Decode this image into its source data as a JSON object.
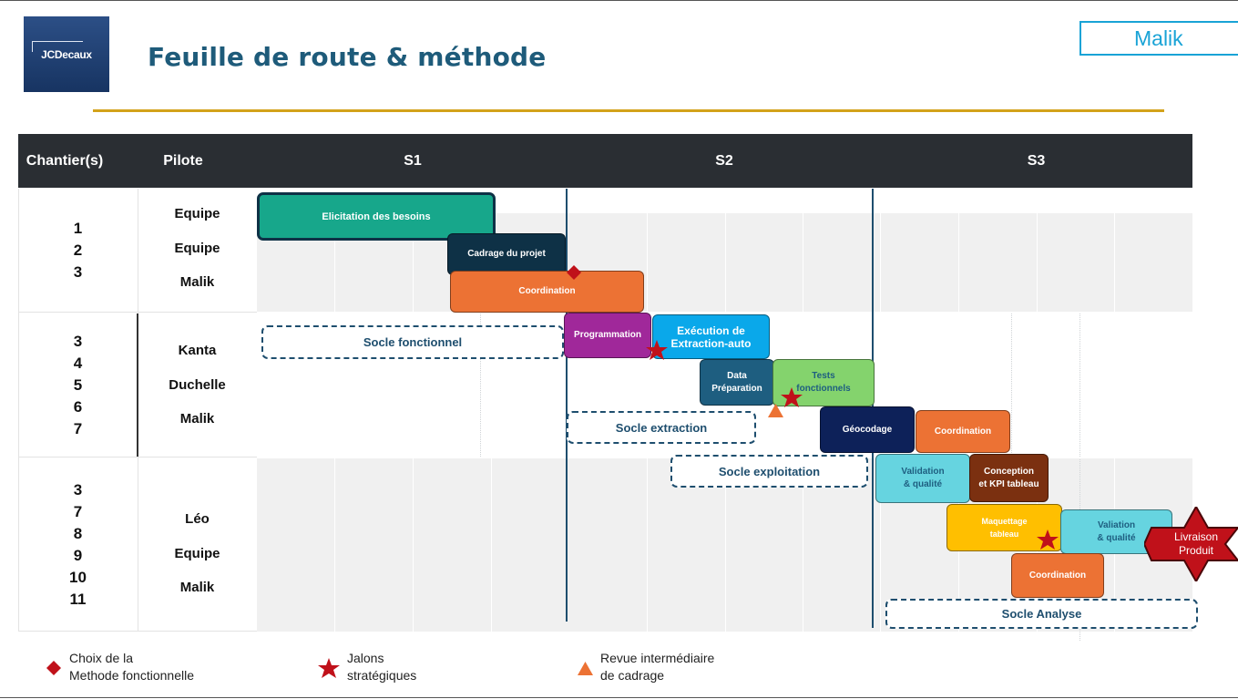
{
  "title": "Feuille de route & méthode",
  "logo_text": "JCDecaux",
  "name_tag": "Malik",
  "header": {
    "chantier": "Chantier(s)",
    "pilote": "Pilote",
    "sprints": [
      "S1",
      "S2",
      "S3"
    ]
  },
  "rows": [
    {
      "chantiers": [
        "1",
        "2",
        "3"
      ],
      "pilotes": [
        "Equipe",
        "Equipe",
        "Malik"
      ]
    },
    {
      "chantiers": [
        "3",
        "4",
        "5",
        "6",
        "7"
      ],
      "pilotes": [
        "Kanta",
        "Duchelle",
        "Malik"
      ]
    },
    {
      "chantiers": [
        "3",
        "7",
        "8",
        "9",
        "10",
        "11"
      ],
      "pilotes": [
        "Léo",
        "Equipe",
        "Malik"
      ]
    }
  ],
  "tasks": {
    "elicitation": {
      "label": "Elicitation des besoins",
      "color": "#17a78b"
    },
    "cadrage": {
      "label": "Cadrage du projet",
      "color": "#0e3146"
    },
    "coordination1": {
      "label": "Coordination",
      "color": "#ec7234"
    },
    "programmation": {
      "label": "Programmation",
      "color": "#a0289a"
    },
    "execution": {
      "label_line1": "Exécution de",
      "label_line2": "Extraction-auto",
      "color": "#0aa8ea"
    },
    "data_prep": {
      "label_line1": "Data",
      "label_line2": "Préparation",
      "color": "#1e5e80"
    },
    "tests": {
      "label_line1": "Tests",
      "label_line2": "fonctionnels",
      "color": "#84d36d"
    },
    "geocodage": {
      "label": "Géocodage",
      "color": "#0d2159"
    },
    "coordination2": {
      "label": "Coordination",
      "color": "#ec7234"
    },
    "validation1": {
      "label_line1": "Validation",
      "label_line2": "& qualité",
      "color": "#66d4e0"
    },
    "conception": {
      "label_line1": "Conception",
      "label_line2": "et KPI tableau",
      "color": "#7b3010"
    },
    "maquettage": {
      "label_line1": "Maquettage",
      "label_line2": "tableau",
      "color": "#ffbf00"
    },
    "validation2": {
      "label_line1": "Valiation",
      "label_line2": "& qualité",
      "color": "#66d4e0"
    },
    "coordination3": {
      "label": "Coordination",
      "color": "#ec7234"
    },
    "livraison": {
      "label_line1": "Livraison",
      "label_line2": "Produit",
      "color": "#c0111a"
    }
  },
  "socles": {
    "fonctionnel": "Socle fonctionnel",
    "extraction": "Socle extraction",
    "exploitation": "Socle exploitation",
    "analyse": "Socle Analyse"
  },
  "legend": {
    "diamond": {
      "line1": "Choix de la",
      "line2": "Methode fonctionnelle",
      "color": "#c0111a"
    },
    "star": {
      "line1": "Jalons",
      "line2": "stratégiques",
      "color": "#c0111a"
    },
    "triangle": {
      "line1": "Revue intermédiaire",
      "line2": "de cadrage",
      "color": "#ec7234"
    }
  },
  "colors": {
    "title": "#1e5b7a",
    "header_bar": "#2a2e33",
    "accent_rule": "#d3a21a",
    "name_tag": "#19a3d6",
    "milestone": "#c0111a"
  }
}
